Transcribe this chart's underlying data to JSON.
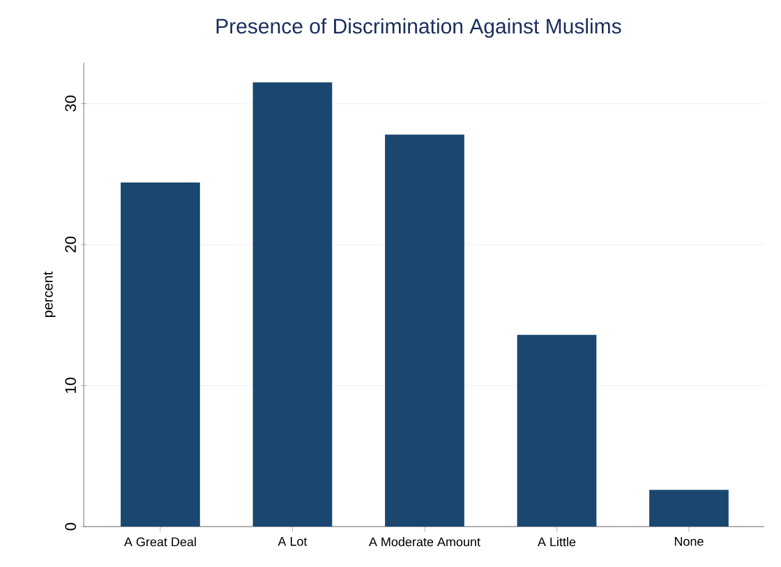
{
  "chart_data": {
    "type": "bar",
    "title": "Presence of Discrimination Against Muslims",
    "ylabel": "percent",
    "categories": [
      "A Great Deal",
      "A Lot",
      "A Moderate Amount",
      "A Little",
      "None"
    ],
    "values": [
      24.4,
      31.5,
      27.8,
      13.6,
      2.6
    ],
    "color": "#1a476f",
    "ylim": [
      0,
      32.9
    ],
    "yticks": [
      0,
      10,
      20,
      30
    ],
    "grid": "y"
  }
}
